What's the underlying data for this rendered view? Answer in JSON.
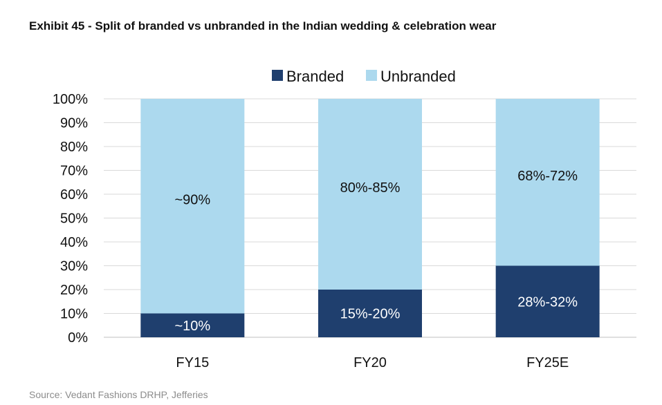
{
  "title": "Exhibit 45 - Split of branded vs unbranded in the Indian wedding & celebration wear",
  "source": "Source: Vedant Fashions DRHP, Jefferies",
  "chart_data": {
    "type": "bar",
    "stacked": true,
    "orientation": "vertical",
    "categories": [
      "FY15",
      "FY20",
      "FY25E"
    ],
    "series": [
      {
        "name": "Branded",
        "color": "#1f3f6e",
        "values": [
          10,
          20,
          30
        ],
        "labels": [
          "~10%",
          "15%-20%",
          "28%-32%"
        ]
      },
      {
        "name": "Unbranded",
        "color": "#acd9ee",
        "values": [
          90,
          80,
          70
        ],
        "labels": [
          "~90%",
          "80%-85%",
          "68%-72%"
        ]
      }
    ],
    "ylim": [
      0,
      100
    ],
    "yticks": [
      "0%",
      "10%",
      "20%",
      "30%",
      "40%",
      "50%",
      "60%",
      "70%",
      "80%",
      "90%",
      "100%"
    ],
    "grid": true,
    "legend_position": "top"
  }
}
